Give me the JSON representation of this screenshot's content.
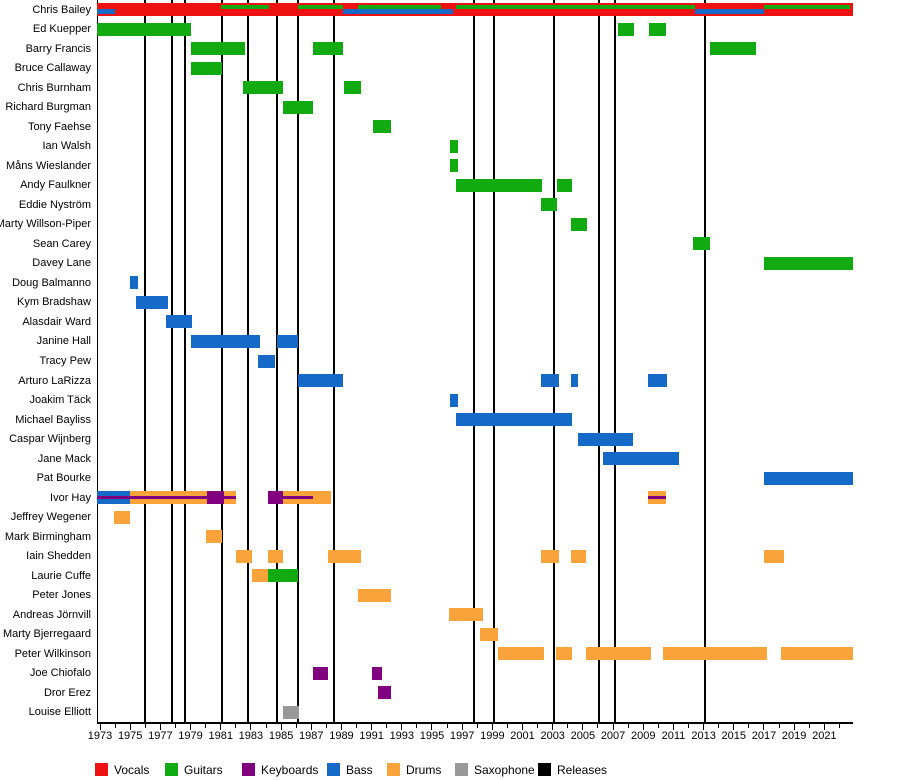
{
  "chart_data": {
    "type": "bar",
    "subtype": "band-membership-timeline-gantt",
    "title": "",
    "x_axis": {
      "start_year": 1973,
      "end_year": 2022,
      "domain": [
        1972.8,
        2022.9
      ],
      "labeled_ticks": [
        1973,
        1975,
        1977,
        1979,
        1981,
        1983,
        1985,
        1987,
        1989,
        1991,
        1993,
        1995,
        1997,
        1999,
        2001,
        2003,
        2005,
        2007,
        2009,
        2011,
        2013,
        2015,
        2017,
        2019,
        2021
      ],
      "minor_tick_step": 1
    },
    "colors": {
      "vocals": "#ee1111",
      "guitars": "#11aa11",
      "keyboards": "#800080",
      "bass": "#1569c7",
      "drums": "#faa33a",
      "saxophone": "#999999",
      "releases": "#000000"
    },
    "legend": [
      {
        "id": "vocals",
        "label": "Vocals",
        "color": "#ee1111"
      },
      {
        "id": "guitars",
        "label": "Guitars",
        "color": "#11aa11"
      },
      {
        "id": "keyboards",
        "label": "Keyboards",
        "color": "#800080"
      },
      {
        "id": "bass",
        "label": "Bass",
        "color": "#1569c7"
      },
      {
        "id": "drums",
        "label": "Drums",
        "color": "#faa33a"
      },
      {
        "id": "saxophone",
        "label": "Saxophone",
        "color": "#999999"
      },
      {
        "id": "releases",
        "label": "Releases",
        "color": "#000000"
      }
    ],
    "release_lines_years": [
      1976.0,
      1977.8,
      1978.6,
      1981.1,
      1982.8,
      1984.7,
      1986.1,
      1988.5,
      1997.8,
      1999.1,
      2003.1,
      2006.1,
      2007.1,
      2013.1
    ],
    "members": [
      {
        "name": "Chris Bailey",
        "segments": [
          {
            "role": "vocals",
            "mid": "bass",
            "from": 1972.8,
            "to": 1974.0
          },
          {
            "role": "vocals",
            "from": 1974.0,
            "to": 1981.0
          },
          {
            "role": "vocals",
            "top": "guitars",
            "from": 1981.0,
            "to": 1984.2
          },
          {
            "role": "vocals",
            "from": 1984.2,
            "to": 1986.1
          },
          {
            "role": "vocals",
            "top": "guitars",
            "from": 1986.1,
            "to": 1989.1
          },
          {
            "role": "vocals",
            "mid": "bass",
            "from": 1989.1,
            "to": 1990.1
          },
          {
            "role": "vocals",
            "top": "guitars",
            "mid": "bass",
            "from": 1990.1,
            "to": 1995.6
          },
          {
            "role": "vocals",
            "mid": "bass",
            "from": 1995.6,
            "to": 1996.4
          },
          {
            "role": "vocals",
            "from": 1996.4,
            "to": 1996.6
          },
          {
            "role": "vocals",
            "top": "guitars",
            "from": 1996.6,
            "to": 2012.4
          },
          {
            "role": "vocals",
            "mid": "bass",
            "from": 2012.4,
            "to": 2017.0
          },
          {
            "role": "vocals",
            "top": "guitars",
            "from": 2017.0,
            "to": 2022.7
          },
          {
            "role": "vocals",
            "from": 2022.7,
            "to": 2022.9
          }
        ]
      },
      {
        "name": "Ed Kuepper",
        "segments": [
          {
            "role": "guitars",
            "from": 1972.8,
            "to": 1979.0
          },
          {
            "role": "guitars",
            "from": 2007.3,
            "to": 2008.4
          },
          {
            "role": "guitars",
            "from": 2009.4,
            "to": 2010.5
          }
        ]
      },
      {
        "name": "Barry Francis",
        "segments": [
          {
            "role": "guitars",
            "from": 1979.0,
            "to": 1982.6
          },
          {
            "role": "guitars",
            "from": 1987.1,
            "to": 1989.1
          },
          {
            "role": "guitars",
            "from": 2013.4,
            "to": 2016.5
          }
        ]
      },
      {
        "name": "Bruce Callaway",
        "segments": [
          {
            "role": "guitars",
            "from": 1979.0,
            "to": 1981.1
          }
        ]
      },
      {
        "name": "Chris Burnham",
        "segments": [
          {
            "role": "guitars",
            "from": 1982.5,
            "to": 1985.1
          },
          {
            "role": "guitars",
            "from": 1989.2,
            "to": 1990.3
          }
        ]
      },
      {
        "name": "Richard Burgman",
        "segments": [
          {
            "role": "guitars",
            "from": 1985.1,
            "to": 1987.1
          }
        ]
      },
      {
        "name": "Tony Faehse",
        "segments": [
          {
            "role": "guitars",
            "from": 1991.1,
            "to": 1992.3
          }
        ]
      },
      {
        "name": "Ian Walsh",
        "segments": [
          {
            "role": "guitars",
            "from": 1996.2,
            "to": 1996.7
          }
        ]
      },
      {
        "name": "Måns Wieslander",
        "segments": [
          {
            "role": "guitars",
            "from": 1996.2,
            "to": 1996.7
          }
        ]
      },
      {
        "name": "Andy Faulkner",
        "segments": [
          {
            "role": "guitars",
            "from": 1996.6,
            "to": 2002.3
          },
          {
            "role": "guitars",
            "from": 2003.3,
            "to": 2004.3
          }
        ]
      },
      {
        "name": "Eddie Nyström",
        "segments": [
          {
            "role": "guitars",
            "from": 2002.2,
            "to": 2003.3
          }
        ]
      },
      {
        "name": "Marty Willson-Piper",
        "segments": [
          {
            "role": "guitars",
            "from": 2004.2,
            "to": 2005.3
          }
        ]
      },
      {
        "name": "Sean Carey",
        "segments": [
          {
            "role": "guitars",
            "from": 2012.3,
            "to": 2013.4
          }
        ]
      },
      {
        "name": "Davey Lane",
        "segments": [
          {
            "role": "guitars",
            "from": 2017.0,
            "to": 2022.9
          }
        ]
      },
      {
        "name": "Doug Balmanno",
        "segments": [
          {
            "role": "bass",
            "from": 1975.0,
            "to": 1975.5
          }
        ]
      },
      {
        "name": "Kym Bradshaw",
        "segments": [
          {
            "role": "bass",
            "from": 1975.4,
            "to": 1977.5
          }
        ]
      },
      {
        "name": "Alasdair Ward",
        "segments": [
          {
            "role": "bass",
            "from": 1977.4,
            "to": 1979.1
          }
        ]
      },
      {
        "name": "Janine Hall",
        "segments": [
          {
            "role": "bass",
            "from": 1979.0,
            "to": 1983.6
          },
          {
            "role": "bass",
            "from": 1984.7,
            "to": 1986.1
          }
        ]
      },
      {
        "name": "Tracy Pew",
        "segments": [
          {
            "role": "bass",
            "from": 1983.5,
            "to": 1984.6
          }
        ]
      },
      {
        "name": "Arturo LaRizza",
        "segments": [
          {
            "role": "bass",
            "from": 1986.1,
            "to": 1989.1
          },
          {
            "role": "bass",
            "from": 2002.2,
            "to": 2003.4
          },
          {
            "role": "bass",
            "from": 2004.2,
            "to": 2004.7
          },
          {
            "role": "bass",
            "from": 2009.3,
            "to": 2010.6
          }
        ]
      },
      {
        "name": "Joakim Täck",
        "segments": [
          {
            "role": "bass",
            "from": 1996.2,
            "to": 1996.7
          }
        ]
      },
      {
        "name": "Michael Bayliss",
        "segments": [
          {
            "role": "bass",
            "from": 1996.6,
            "to": 2004.3
          }
        ]
      },
      {
        "name": "Caspar Wijnberg",
        "segments": [
          {
            "role": "bass",
            "from": 2004.7,
            "to": 2008.3
          }
        ]
      },
      {
        "name": "Jane Mack",
        "segments": [
          {
            "role": "bass",
            "from": 2006.3,
            "to": 2011.4
          }
        ]
      },
      {
        "name": "Pat Bourke",
        "segments": [
          {
            "role": "bass",
            "from": 2017.0,
            "to": 2022.9
          }
        ]
      },
      {
        "name": "Ivor Hay",
        "segments": [
          {
            "role": "bass",
            "stripe": "keyboards",
            "from": 1972.8,
            "to": 1975.0
          },
          {
            "role": "drums",
            "stripe": "keyboards",
            "from": 1975.0,
            "to": 1980.1
          },
          {
            "role": "keyboards",
            "from": 1980.1,
            "to": 1981.2
          },
          {
            "role": "drums",
            "stripe": "keyboards",
            "from": 1981.2,
            "to": 1982.0
          },
          {
            "role": "keyboards",
            "from": 1984.1,
            "to": 1985.1
          },
          {
            "role": "drums",
            "stripe": "keyboards",
            "from": 1985.1,
            "to": 1987.1
          },
          {
            "role": "drums",
            "from": 1987.1,
            "to": 1988.3
          },
          {
            "role": "drums",
            "stripe": "keyboards",
            "from": 2009.3,
            "to": 2010.5
          }
        ]
      },
      {
        "name": "Jeffrey Wegener",
        "segments": [
          {
            "role": "drums",
            "from": 1973.9,
            "to": 1975.0
          }
        ]
      },
      {
        "name": "Mark Birmingham",
        "segments": [
          {
            "role": "drums",
            "from": 1980.0,
            "to": 1981.1
          }
        ]
      },
      {
        "name": "Iain Shedden",
        "segments": [
          {
            "role": "drums",
            "from": 1982.0,
            "to": 1983.1
          },
          {
            "role": "drums",
            "from": 1984.1,
            "to": 1985.1
          },
          {
            "role": "drums",
            "from": 1988.1,
            "to": 1990.3
          },
          {
            "role": "drums",
            "from": 2002.2,
            "to": 2003.4
          },
          {
            "role": "drums",
            "from": 2004.2,
            "to": 2005.2
          },
          {
            "role": "drums",
            "from": 2017.0,
            "to": 2018.3
          }
        ]
      },
      {
        "name": "Laurie Cuffe",
        "segments": [
          {
            "role": "drums",
            "from": 1983.1,
            "to": 1984.1
          },
          {
            "role": "guitars",
            "from": 1984.1,
            "to": 1986.1
          }
        ]
      },
      {
        "name": "Peter Jones",
        "segments": [
          {
            "role": "drums",
            "from": 1990.1,
            "to": 1992.3
          }
        ]
      },
      {
        "name": "Andreas Jörnvill",
        "segments": [
          {
            "role": "drums",
            "from": 1996.1,
            "to": 1998.4
          }
        ]
      },
      {
        "name": "Marty Bjerregaard",
        "segments": [
          {
            "role": "drums",
            "from": 1998.2,
            "to": 1999.4
          }
        ]
      },
      {
        "name": "Peter Wilkinson",
        "segments": [
          {
            "role": "drums",
            "from": 1999.4,
            "to": 2002.4
          },
          {
            "role": "drums",
            "from": 2003.2,
            "to": 2004.3
          },
          {
            "role": "drums",
            "from": 2005.2,
            "to": 2009.5
          },
          {
            "role": "drums",
            "from": 2010.3,
            "to": 2017.2
          },
          {
            "role": "drums",
            "from": 2018.1,
            "to": 2022.9
          }
        ]
      },
      {
        "name": "Joe Chiofalo",
        "segments": [
          {
            "role": "keyboards",
            "from": 1987.1,
            "to": 1988.1
          },
          {
            "role": "keyboards",
            "from": 1991.0,
            "to": 1991.7
          }
        ]
      },
      {
        "name": "Dror Erez",
        "segments": [
          {
            "role": "keyboards",
            "from": 1991.4,
            "to": 1992.3
          }
        ]
      },
      {
        "name": "Louise Elliott",
        "segments": [
          {
            "role": "saxophone",
            "from": 1985.1,
            "to": 1986.2
          }
        ]
      }
    ]
  }
}
